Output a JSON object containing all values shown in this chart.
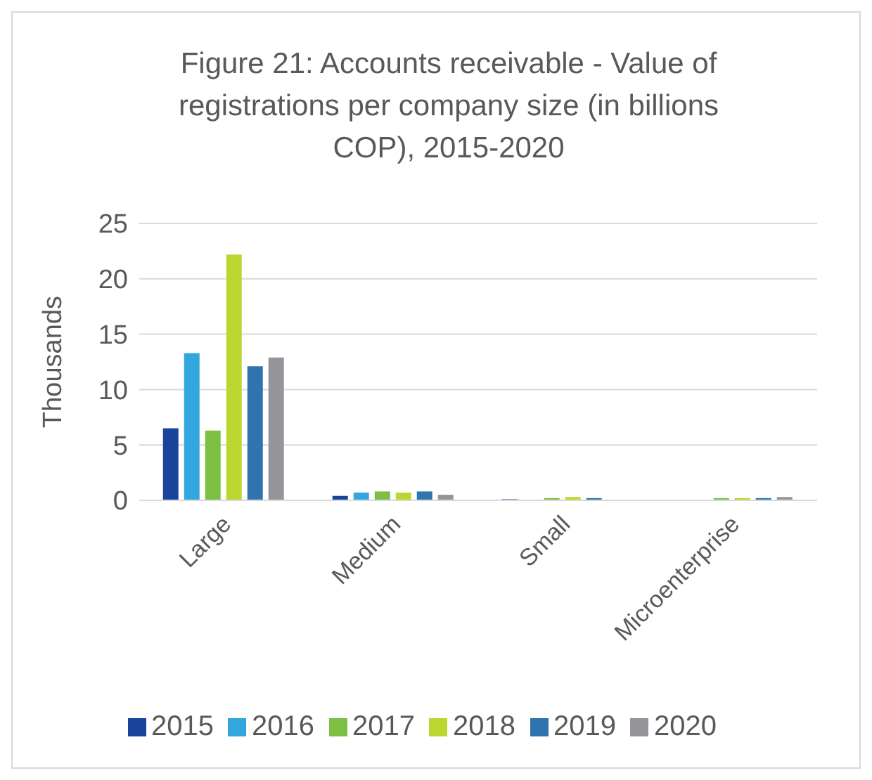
{
  "chart_data": {
    "type": "bar",
    "title": "Figure 21: Accounts receivable - Value of registrations per company size (in billions COP), 2015-2020",
    "ylabel": "Thousands",
    "categories": [
      "Large",
      "Medium",
      "Small",
      "Microenterprise"
    ],
    "series": [
      {
        "name": "2015",
        "color": "#1a439c",
        "values": [
          6.5,
          0.4,
          0.1,
          0
        ]
      },
      {
        "name": "2016",
        "color": "#34a6de",
        "values": [
          13.3,
          0.7,
          0,
          0
        ]
      },
      {
        "name": "2017",
        "color": "#7dbf42",
        "values": [
          6.3,
          0.8,
          0.2,
          0.2
        ]
      },
      {
        "name": "2018",
        "color": "#bcd630",
        "values": [
          22.2,
          0.7,
          0.3,
          0.2
        ]
      },
      {
        "name": "2019",
        "color": "#2e74b0",
        "values": [
          12.1,
          0.8,
          0.2,
          0.2
        ]
      },
      {
        "name": "2020",
        "color": "#939598",
        "values": [
          12.9,
          0.5,
          0,
          0.3
        ]
      }
    ],
    "ylim": [
      0,
      25
    ],
    "yticks": [
      0,
      5,
      10,
      15,
      20,
      25
    ],
    "grid": "y",
    "legend": "bottom"
  }
}
